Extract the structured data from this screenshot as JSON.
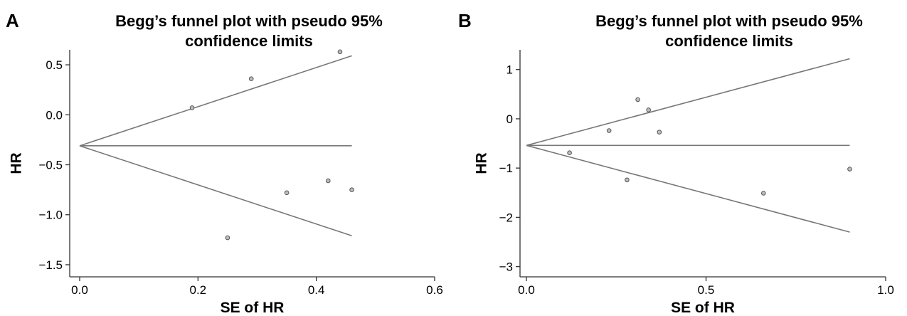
{
  "chart_data": [
    {
      "panel_letter": "A",
      "type": "scatter",
      "title_lines": [
        "Begg’s funnel plot with pseudo 95%",
        "confidence limits"
      ],
      "xlabel": "SE of HR",
      "ylabel": "HR",
      "xlim": [
        0.0,
        0.6
      ],
      "ylim": [
        -1.6,
        0.65
      ],
      "xticks": [
        0.0,
        0.2,
        0.4,
        0.6
      ],
      "xtick_labels": [
        "0.0",
        "0.2",
        "0.4",
        "0.6"
      ],
      "yticks": [
        -1.5,
        -1.0,
        -0.5,
        0.0,
        0.5
      ],
      "ytick_labels": [
        "−1.5",
        "−1.0",
        "−0.5",
        "0.0",
        "0.5"
      ],
      "pooled_estimate": -0.31,
      "funnel_max_se": 0.46,
      "funnel_upper_end": 0.59,
      "funnel_lower_end": -1.21,
      "points": [
        {
          "x": 0.19,
          "y": 0.07
        },
        {
          "x": 0.29,
          "y": 0.36
        },
        {
          "x": 0.44,
          "y": 0.63
        },
        {
          "x": 0.25,
          "y": -1.23
        },
        {
          "x": 0.35,
          "y": -0.78
        },
        {
          "x": 0.42,
          "y": -0.66
        },
        {
          "x": 0.46,
          "y": -0.75
        }
      ]
    },
    {
      "panel_letter": "B",
      "type": "scatter",
      "title_lines": [
        "Begg’s funnel plot with pseudo 95%",
        "confidence limits"
      ],
      "xlabel": "SE of HR",
      "ylabel": "HR",
      "xlim": [
        0.0,
        1.0
      ],
      "ylim": [
        -3.15,
        1.4
      ],
      "xticks": [
        0.0,
        0.5,
        1.0
      ],
      "xtick_labels": [
        "0.0",
        "0.5",
        "1.0"
      ],
      "yticks": [
        -3,
        -2,
        -1,
        0,
        1
      ],
      "ytick_labels": [
        "−3",
        "−2",
        "−1",
        "0",
        "1"
      ],
      "pooled_estimate": -0.54,
      "funnel_max_se": 0.9,
      "funnel_upper_end": 1.22,
      "funnel_lower_end": -2.3,
      "points": [
        {
          "x": 0.12,
          "y": -0.69
        },
        {
          "x": 0.23,
          "y": -0.24
        },
        {
          "x": 0.31,
          "y": 0.39
        },
        {
          "x": 0.34,
          "y": 0.18
        },
        {
          "x": 0.37,
          "y": -0.27
        },
        {
          "x": 0.28,
          "y": -1.24
        },
        {
          "x": 0.66,
          "y": -1.51
        },
        {
          "x": 0.9,
          "y": -1.02
        }
      ]
    }
  ]
}
